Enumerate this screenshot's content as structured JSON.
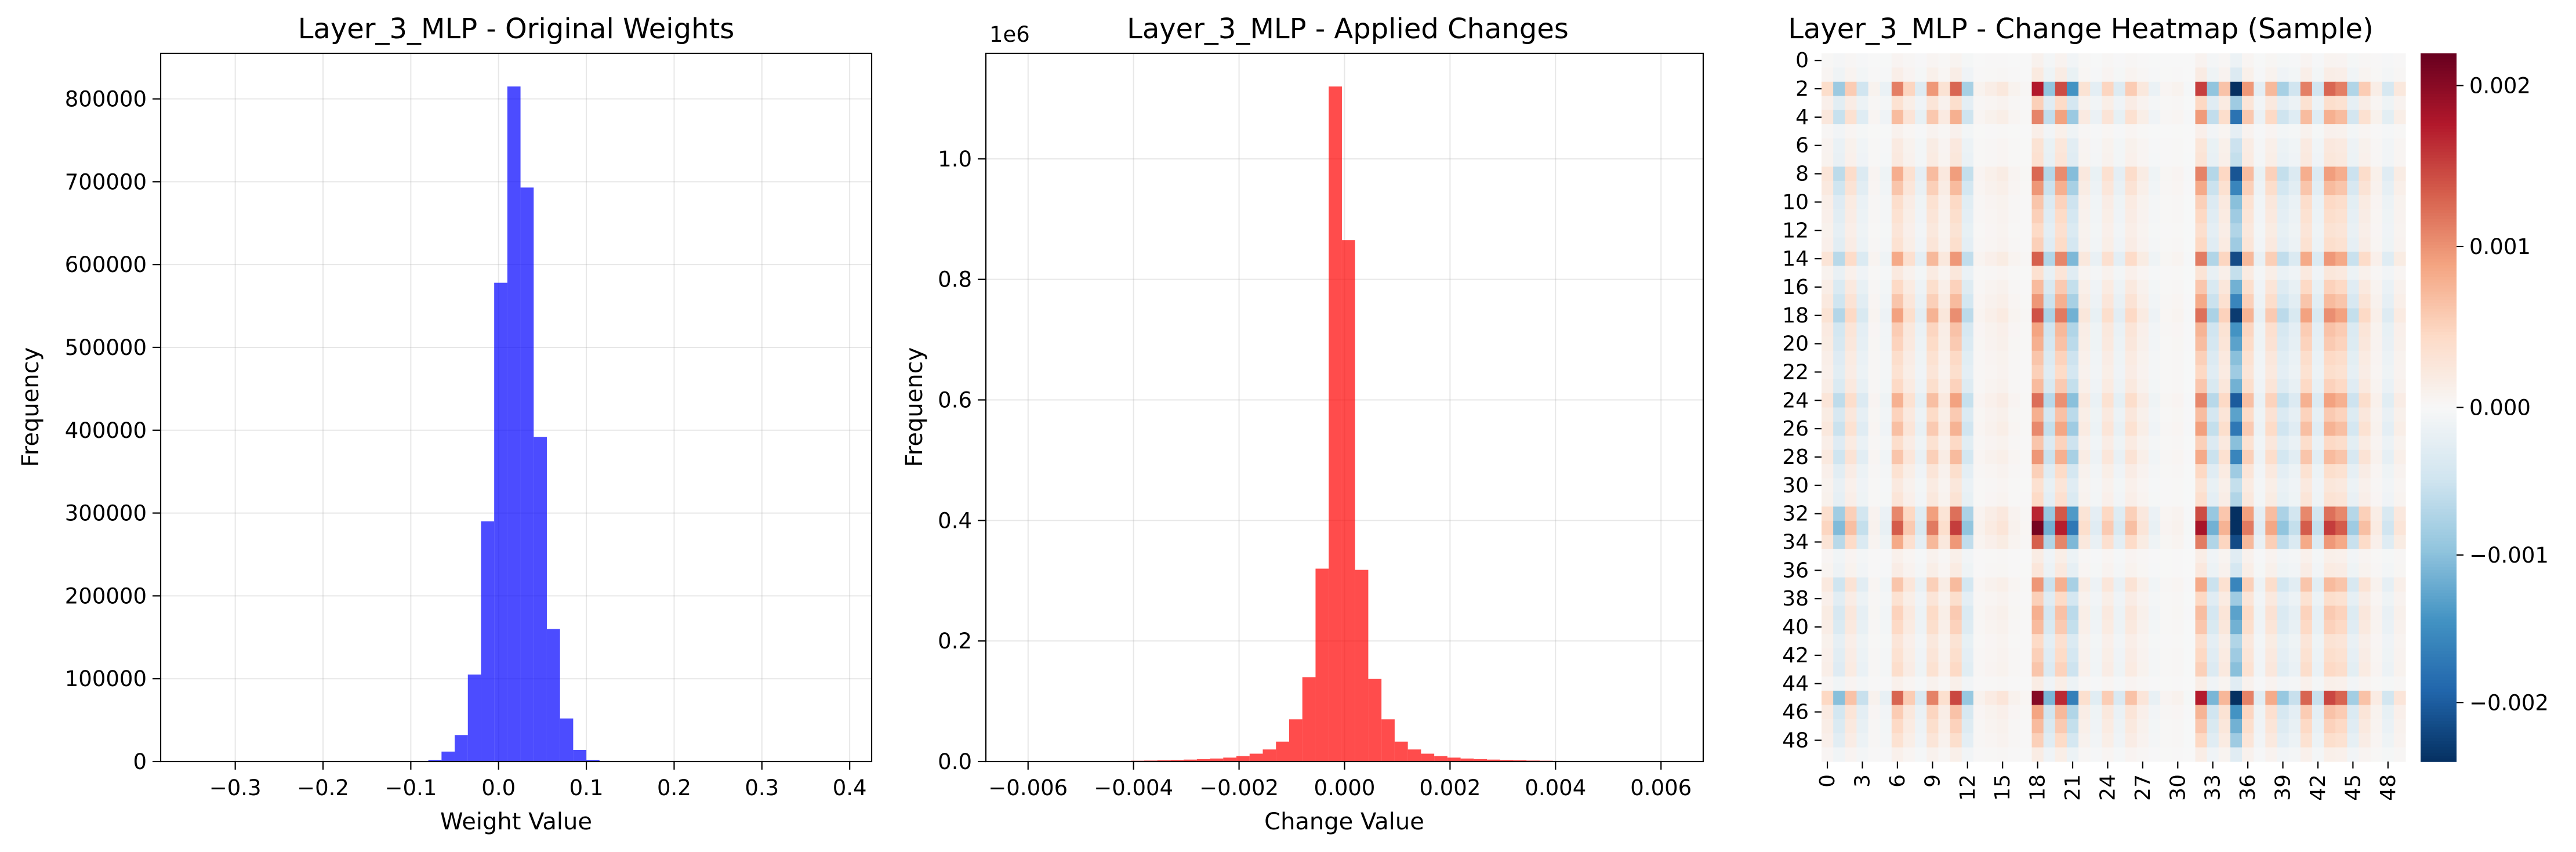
{
  "chart_data": [
    {
      "type": "bar",
      "title": "Layer_3_MLP - Original Weights",
      "xlabel": "Weight Value",
      "ylabel": "Frequency",
      "xlim": [
        -0.385,
        0.425
      ],
      "ylim": [
        0,
        855000
      ],
      "grid": true,
      "bar_color": "#0000ff",
      "xticks": [
        -0.3,
        -0.2,
        -0.1,
        0.0,
        0.1,
        0.2,
        0.3,
        0.4
      ],
      "xtick_labels": [
        "−0.3",
        "−0.2",
        "−0.1",
        "0.0",
        "0.1",
        "0.2",
        "0.3",
        "0.4"
      ],
      "yticks": [
        0,
        100000,
        200000,
        300000,
        400000,
        500000,
        600000,
        700000,
        800000
      ],
      "ytick_labels": [
        "0",
        "100000",
        "200000",
        "300000",
        "400000",
        "500000",
        "600000",
        "700000",
        "800000"
      ],
      "bin_edges": [
        -0.35,
        -0.335,
        -0.32,
        -0.305,
        -0.29,
        -0.275,
        -0.26,
        -0.245,
        -0.23,
        -0.215,
        -0.2,
        -0.185,
        -0.17,
        -0.155,
        -0.14,
        -0.125,
        -0.11,
        -0.095,
        -0.08,
        -0.065,
        -0.05,
        -0.035,
        -0.02,
        -0.005,
        0.01,
        0.025,
        0.04,
        0.055,
        0.07,
        0.085,
        0.1,
        0.115,
        0.13,
        0.145,
        0.16,
        0.175,
        0.19,
        0.205,
        0.22,
        0.235,
        0.25,
        0.265,
        0.28,
        0.295,
        0.31,
        0.325,
        0.34,
        0.355,
        0.37,
        0.385,
        0.4
      ],
      "values": [
        0,
        0,
        0,
        0,
        0,
        0,
        0,
        0,
        0,
        0,
        0,
        0,
        0,
        0,
        0,
        0,
        0,
        200,
        2000,
        12000,
        32000,
        105000,
        290000,
        578000,
        815000,
        693000,
        392000,
        160000,
        52000,
        14000,
        2000,
        300,
        0,
        0,
        0,
        0,
        0,
        0,
        0,
        0,
        0,
        0,
        0,
        0,
        0,
        0,
        0,
        0,
        0,
        0
      ]
    },
    {
      "type": "bar",
      "title": "Layer_3_MLP - Applied Changes",
      "xlabel": "Change Value",
      "ylabel": "Frequency",
      "offset_text": "1e6",
      "xlim": [
        -0.0068,
        0.0068
      ],
      "ylim": [
        0,
        1.175
      ],
      "grid": true,
      "bar_color": "#ff0000",
      "xticks": [
        -0.006,
        -0.004,
        -0.002,
        0.0,
        0.002,
        0.004,
        0.006
      ],
      "xtick_labels": [
        "−0.006",
        "−0.004",
        "−0.002",
        "0.000",
        "0.002",
        "0.004",
        "0.006"
      ],
      "yticks": [
        0.0,
        0.2,
        0.4,
        0.6,
        0.8,
        1.0
      ],
      "ytick_labels": [
        "0.0",
        "0.2",
        "0.4",
        "0.6",
        "0.8",
        "1.0"
      ],
      "bin_edges": [
        -0.0063,
        -0.00605,
        -0.0058,
        -0.00555,
        -0.0053,
        -0.00505,
        -0.0048,
        -0.00455,
        -0.0043,
        -0.00405,
        -0.0038,
        -0.00355,
        -0.0033,
        -0.00305,
        -0.0028,
        -0.00255,
        -0.0023,
        -0.00205,
        -0.0018,
        -0.00155,
        -0.0013,
        -0.00105,
        -0.0008,
        -0.00055,
        -0.0003,
        -5e-05,
        0.0002,
        0.00045,
        0.0007,
        0.00095,
        0.0012,
        0.00145,
        0.0017,
        0.00195,
        0.0022,
        0.00245,
        0.0027,
        0.00295,
        0.0032,
        0.00345,
        0.0037,
        0.00395,
        0.0042,
        0.00445,
        0.0047,
        0.00495,
        0.0052,
        0.00545,
        0.0057,
        0.00595,
        0.0062
      ],
      "values": [
        0.0002,
        0.0002,
        0.0003,
        0.0003,
        0.0004,
        0.0005,
        0.0006,
        0.0008,
        0.001,
        0.0013,
        0.0016,
        0.002,
        0.0025,
        0.0032,
        0.004,
        0.005,
        0.0065,
        0.009,
        0.013,
        0.02,
        0.033,
        0.07,
        0.14,
        0.32,
        1.12,
        0.865,
        0.318,
        0.137,
        0.07,
        0.033,
        0.02,
        0.013,
        0.009,
        0.0065,
        0.005,
        0.004,
        0.0032,
        0.0025,
        0.002,
        0.0016,
        0.0013,
        0.001,
        0.0008,
        0.0006,
        0.0005,
        0.0004,
        0.0003,
        0.0003,
        0.0002,
        0.0002
      ]
    },
    {
      "type": "heatmap",
      "title": "Layer_3_MLP - Change Heatmap (Sample)",
      "rows": 50,
      "cols": 50,
      "yticks": [
        0,
        2,
        4,
        6,
        8,
        10,
        12,
        14,
        16,
        18,
        20,
        22,
        24,
        26,
        28,
        30,
        32,
        34,
        36,
        38,
        40,
        42,
        44,
        46,
        48
      ],
      "ytick_labels": [
        "0",
        "2",
        "4",
        "6",
        "8",
        "10",
        "12",
        "14",
        "16",
        "18",
        "20",
        "22",
        "24",
        "26",
        "28",
        "30",
        "32",
        "34",
        "36",
        "38",
        "40",
        "42",
        "44",
        "46",
        "48"
      ],
      "xticks": [
        0,
        3,
        6,
        9,
        12,
        15,
        18,
        21,
        24,
        27,
        30,
        33,
        36,
        39,
        42,
        45,
        48
      ],
      "xtick_labels": [
        "0",
        "3",
        "6",
        "9",
        "12",
        "15",
        "18",
        "21",
        "24",
        "27",
        "30",
        "33",
        "36",
        "39",
        "42",
        "45",
        "48"
      ],
      "colormap": "RdBu_r",
      "color_min": -0.0024,
      "color_max": 0.0022,
      "colorbar_ticks": [
        0.002,
        0.001,
        0.0,
        -0.001,
        -0.002
      ],
      "colorbar_tick_labels": [
        "0.002",
        "0.001",
        "0.000",
        "−0.001",
        "−0.002"
      ],
      "row_factors": [
        0.05,
        0.12,
        1.0,
        0.3,
        0.62,
        0.08,
        0.18,
        0.2,
        0.72,
        0.55,
        0.35,
        0.3,
        0.25,
        0.3,
        0.75,
        0.2,
        0.4,
        0.55,
        0.8,
        0.5,
        0.45,
        0.35,
        0.3,
        0.4,
        0.7,
        0.45,
        0.6,
        0.35,
        0.55,
        0.3,
        0.2,
        0.25,
        0.95,
        1.2,
        0.75,
        0.1,
        0.15,
        0.55,
        0.3,
        0.45,
        0.4,
        0.25,
        0.3,
        0.35,
        0.1,
        1.15,
        0.5,
        0.4,
        0.3,
        0.1
      ],
      "col_factors": [
        0.25,
        -0.55,
        0.35,
        -0.3,
        0.05,
        -0.1,
        0.7,
        0.3,
        -0.2,
        0.6,
        0.2,
        0.8,
        -0.5,
        0.05,
        0.1,
        0.15,
        0.05,
        0.02,
        1.1,
        -0.6,
        0.9,
        -0.9,
        0.2,
        -0.15,
        0.3,
        -0.2,
        0.35,
        0.15,
        -0.1,
        0.03,
        0.05,
        -0.02,
        0.95,
        -0.6,
        0.4,
        -1.8,
        0.6,
        -0.15,
        0.45,
        -0.5,
        -0.3,
        0.7,
        -0.3,
        0.8,
        0.7,
        -0.45,
        0.35,
        0.1,
        -0.25,
        0.15
      ]
    }
  ]
}
